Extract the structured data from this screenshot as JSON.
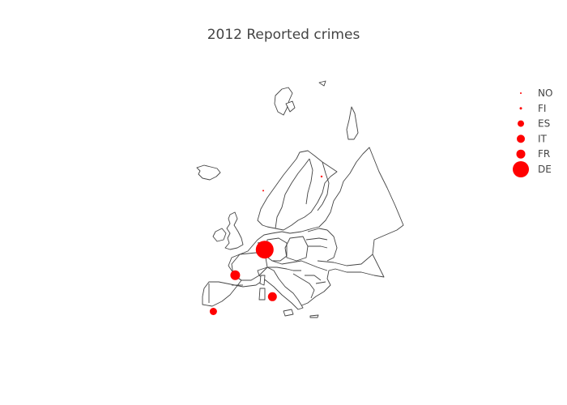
{
  "title": "2012 Reported crimes",
  "marker_color": "#ff0000",
  "chart_data": {
    "type": "scatter",
    "subtype": "geo-bubble",
    "title": "2012 Reported crimes",
    "scope": "europe",
    "legend_position": "right",
    "series": [
      {
        "name": "NO",
        "lon": 10.0,
        "lat": 61.5
      },
      {
        "name": "FI",
        "lon": 26.0,
        "lat": 64.0
      },
      {
        "name": "ES",
        "lon": -3.7,
        "lat": 40.2
      },
      {
        "name": "IT",
        "lon": 12.5,
        "lat": 42.8
      },
      {
        "name": "FR",
        "lon": 2.3,
        "lat": 46.6
      },
      {
        "name": "DE",
        "lon": 10.4,
        "lat": 51.1
      }
    ]
  }
}
